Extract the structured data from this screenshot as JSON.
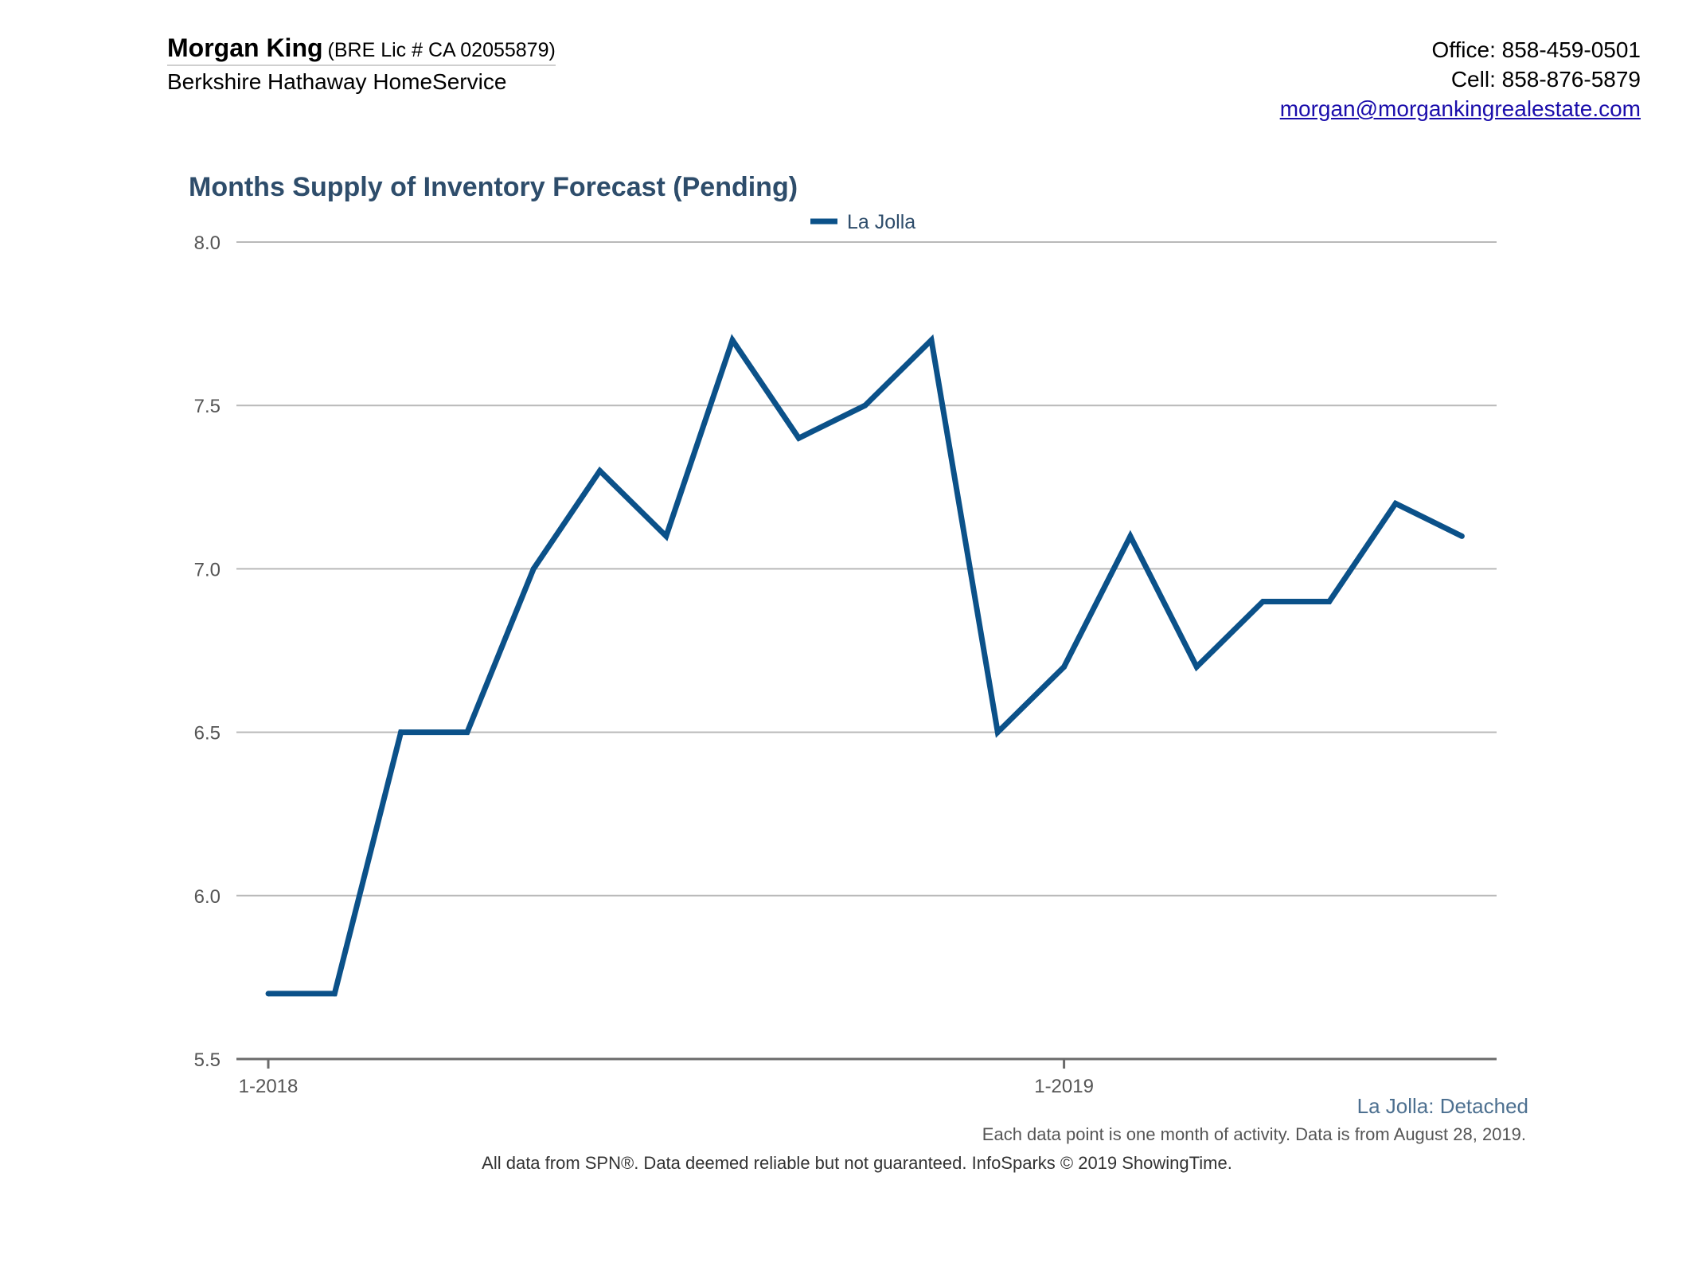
{
  "header": {
    "agent_name": "Morgan King",
    "license": "(BRE Lic # CA 02055879)",
    "company": "Berkshire Hathaway HomeService",
    "office": "Office: 858-459-0501",
    "cell": "Cell: 858-876-5879",
    "email": "morgan@morgankingrealestate.com"
  },
  "chart_data": {
    "type": "line",
    "title": "Months Supply of Inventory Forecast (Pending)",
    "xlabel": "",
    "ylabel": "",
    "ylim": [
      5.5,
      8.0
    ],
    "yticks": [
      "5.5",
      "6.0",
      "6.5",
      "7.0",
      "7.5",
      "8.0"
    ],
    "xtick_labels": [
      {
        "label": "1-2018",
        "index": 0
      },
      {
        "label": "1-2019",
        "index": 12
      }
    ],
    "x": [
      "2018-01",
      "2018-02",
      "2018-03",
      "2018-04",
      "2018-05",
      "2018-06",
      "2018-07",
      "2018-08",
      "2018-09",
      "2018-10",
      "2018-11",
      "2018-12",
      "2019-01",
      "2019-02",
      "2019-03",
      "2019-04",
      "2019-05",
      "2019-06",
      "2019-07"
    ],
    "series": [
      {
        "name": "La Jolla",
        "color": "#0b5189",
        "values": [
          5.7,
          5.7,
          6.5,
          6.5,
          7.0,
          7.3,
          7.1,
          7.7,
          7.4,
          7.5,
          7.7,
          6.5,
          6.7,
          7.1,
          6.7,
          6.9,
          6.9,
          7.2,
          7.1
        ]
      }
    ],
    "grid": true,
    "legend": "top-center"
  },
  "footer": {
    "area": "La Jolla",
    "property_type": "Detached",
    "note": "Each data point is one month of activity. Data is from August 28, 2019.",
    "disclaimer": "All data from SPN®. Data deemed reliable but not guaranteed. InfoSparks © 2019 ShowingTime."
  }
}
